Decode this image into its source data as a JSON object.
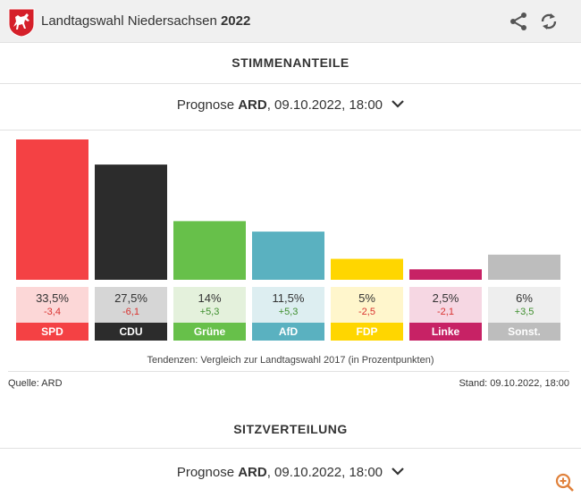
{
  "header": {
    "title_prefix": "Landtagswahl Niedersachsen ",
    "title_year": "2022"
  },
  "stimmen": {
    "title": "STIMMENANTEILE",
    "dropdown_pre": "Prognose ",
    "dropdown_bold": "ARD",
    "dropdown_post": ", 09.10.2022, 18:00"
  },
  "chart_data": {
    "type": "bar",
    "categories": [
      "SPD",
      "CDU",
      "Grüne",
      "AfD",
      "FDP",
      "Linke",
      "Sonst."
    ],
    "values": [
      33.5,
      27.5,
      14,
      11.5,
      5,
      2.5,
      6
    ],
    "value_labels": [
      "33,5%",
      "27,5%",
      "14%",
      "11,5%",
      "5%",
      "2,5%",
      "6%"
    ],
    "changes": [
      -3.4,
      -6.1,
      5.3,
      5.3,
      -2.5,
      -2.1,
      3.5
    ],
    "change_labels": [
      "-3,4",
      "-6,1",
      "+5,3",
      "+5,3",
      "-2,5",
      "-2,1",
      "+3,5"
    ],
    "colors": [
      "#f44144",
      "#2c2c2c",
      "#67c04a",
      "#5ab1c0",
      "#ffd600",
      "#c72265",
      "#bdbdbd"
    ],
    "card_colors": [
      "#fcd7d7",
      "#d6d6d6",
      "#e4f1dc",
      "#ddeef1",
      "#fff6cc",
      "#f6d7e3",
      "#eeeeee"
    ],
    "name_text_colors": [
      "#ffffff",
      "#ffffff",
      "#ffffff",
      "#ffffff",
      "#ffffff",
      "#ffffff",
      "#ffffff"
    ],
    "change_colors": {
      "negative": "#d9322f",
      "positive": "#3f8f2e"
    }
  },
  "footer": {
    "note": "Tendenzen: Vergleich zur Landtagswahl 2017 (in Prozentpunkten)",
    "source": "Quelle: ARD",
    "stand": "Stand: 09.10.2022, 18:00"
  },
  "sitze": {
    "title": "SITZVERTEILUNG",
    "dropdown_pre": "Prognose ",
    "dropdown_bold": "ARD",
    "dropdown_post": ", 09.10.2022, 18:00"
  },
  "icons": {
    "crest": "lower-saxony-crest-icon",
    "share": "share-icon",
    "refresh": "refresh-icon",
    "chevron": "chevron-down-icon",
    "zoom": "zoom-icon"
  }
}
